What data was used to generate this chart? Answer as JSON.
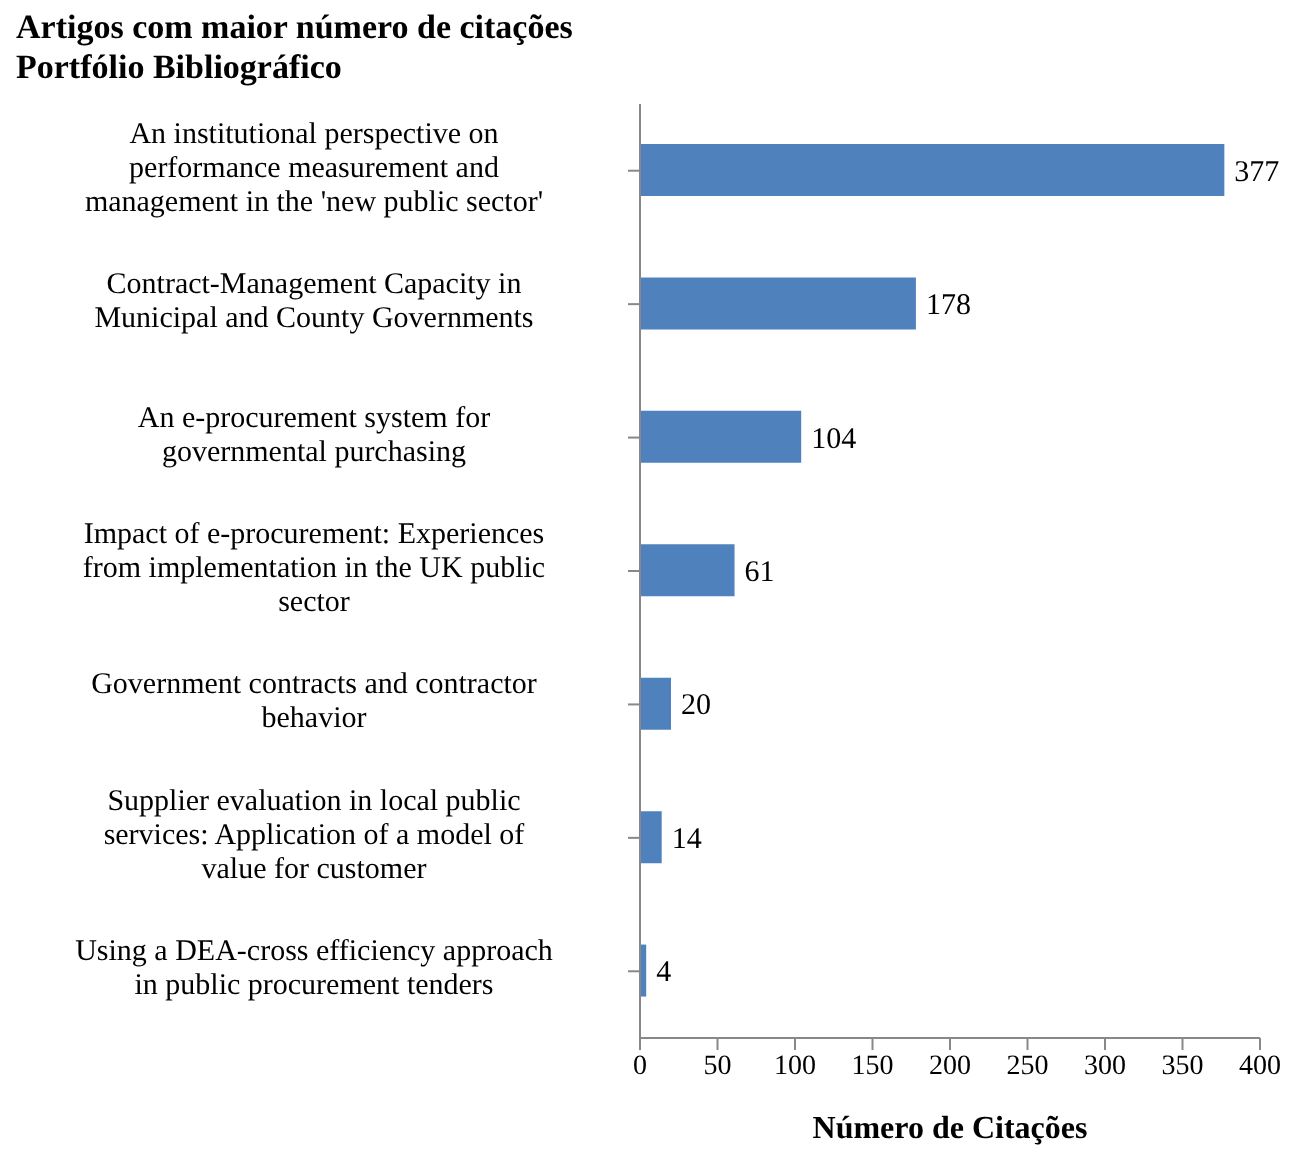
{
  "chart_data": {
    "type": "bar",
    "orientation": "horizontal",
    "title": "Artigos com maior número de citações Portfólio Bibliográfico",
    "xlabel": "Número de Citações",
    "categories": [
      "An institutional perspective on performance measurement and management in the 'new public sector'",
      "Contract-Management Capacity in Municipal and County Governments",
      "An e-procurement system for governmental purchasing",
      "Impact of e-procurement: Experiences from implementation in the UK public sector",
      "Government contracts and contractor behavior",
      "Supplier evaluation in local public services: Application of a model of value for customer",
      "Using a DEA-cross efficiency approach in public procurement tenders"
    ],
    "values": [
      377,
      178,
      104,
      61,
      20,
      14,
      4
    ],
    "color": "#4f81bd",
    "data_labels": true,
    "xlim": [
      0,
      400
    ],
    "xticks": [
      0,
      50,
      100,
      150,
      200,
      250,
      300,
      350,
      400
    ]
  }
}
